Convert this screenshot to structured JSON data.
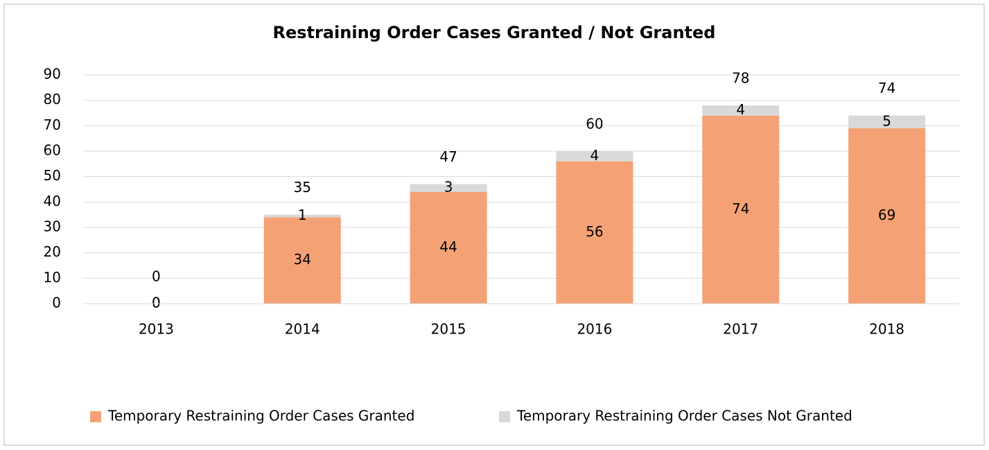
{
  "chart_data": {
    "type": "stacked_bar",
    "title": "Restraining Order Cases Granted / Not Granted",
    "categories": [
      "2013",
      "2014",
      "2015",
      "2016",
      "2017",
      "2018"
    ],
    "series": [
      {
        "name": "Temporary Restraining Order Cases Granted",
        "color": "#f4a275",
        "values": [
          0,
          34,
          44,
          56,
          74,
          69
        ]
      },
      {
        "name": "Temporary Restraining Order Cases Not Granted",
        "color": "#d9d9d9",
        "values": [
          0,
          1,
          3,
          4,
          4,
          5
        ]
      }
    ],
    "totals": [
      0,
      35,
      47,
      60,
      78,
      74
    ],
    "ylim": [
      0,
      90
    ],
    "yticks": [
      0,
      10,
      20,
      30,
      40,
      50,
      60,
      70,
      80,
      90
    ],
    "grid": true,
    "legend": "bottom"
  }
}
